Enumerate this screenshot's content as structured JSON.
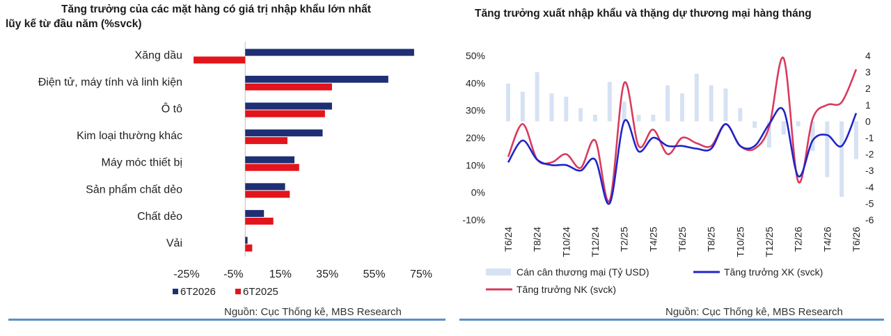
{
  "left": {
    "title_line1": "Tăng trưởng của các mặt hàng có giá trị nhập khẩu lớn nhất",
    "title_line2": "lũy kế từ đầu năm (%svck)",
    "source": "Nguồn: Cục Thống kê, MBS Research"
  },
  "right": {
    "title": "Tăng trưởng xuất nhập khẩu và thặng dự thương mại hàng tháng",
    "source": "Nguồn: Cục Thống kê, MBS Research"
  },
  "chart_data": [
    {
      "type": "bar",
      "orientation": "horizontal",
      "categories": [
        "Xăng dầu",
        "Điện tử, máy tính và linh kiện",
        "Ô tô",
        "Kim loại thường khác",
        "Máy móc thiết bị",
        "Sản phẩm chất dẻo",
        "Chất dẻo",
        "Vải"
      ],
      "series": [
        {
          "name": "6T2026",
          "color": "#1f2f74",
          "values": [
            72,
            61,
            37,
            33,
            21,
            17,
            8,
            1
          ]
        },
        {
          "name": "6T2025",
          "color": "#e3141b",
          "values": [
            -22,
            37,
            34,
            18,
            23,
            19,
            12,
            3
          ]
        }
      ],
      "xlim": [
        -25,
        75
      ],
      "xticks": [
        "-25%",
        "-5%",
        "15%",
        "35%",
        "55%",
        "75%"
      ],
      "legend": "bottom-left"
    },
    {
      "type": "line",
      "x": [
        "T6/24",
        "T7/24",
        "T8/24",
        "T9/24",
        "T10/24",
        "T11/24",
        "T12/24",
        "T1/25",
        "T2/25",
        "T3/25",
        "T4/25",
        "T5/25",
        "T6/25",
        "T7/25",
        "T8/25",
        "T9/25",
        "T10/25",
        "T11/25",
        "T12/25",
        "T1/26",
        "T2/26",
        "T3/26",
        "T4/26",
        "T5/26",
        "T6/26"
      ],
      "xticks": [
        "T6/24",
        "T8/24",
        "T10/24",
        "T12/24",
        "T2/25",
        "T4/25",
        "T6/25",
        "T8/25",
        "T10/25",
        "T12/25",
        "T2/26",
        "T4/26",
        "T6/26"
      ],
      "series": [
        {
          "name": "Cán cân thương mại (Tỷ USD)",
          "kind": "bar",
          "axis": "right",
          "color": "#d6e2f3",
          "values": [
            2.3,
            1.8,
            3.0,
            1.7,
            1.5,
            0.8,
            0.4,
            2.4,
            1.2,
            0.4,
            0.4,
            2.2,
            1.7,
            2.9,
            2.2,
            2.0,
            0.8,
            -0.4,
            -1.6,
            -0.8,
            -0.3,
            -1.8,
            -3.4,
            -4.6,
            -2.3
          ]
        },
        {
          "name": "Tăng trưởng XK (svck)",
          "axis": "left",
          "color": "#1f24c8",
          "values": [
            11,
            19,
            12,
            10,
            10,
            8,
            12,
            -4,
            26,
            15,
            20,
            17,
            17,
            16,
            16,
            25,
            17,
            17,
            25,
            30,
            6,
            19,
            21,
            17,
            29
          ]
        },
        {
          "name": "Tăng trưởng NK (svck)",
          "axis": "left",
          "color": "#d93a5c",
          "values": [
            13,
            25,
            12,
            11,
            14,
            9,
            19,
            -3,
            40,
            17,
            23,
            14,
            20,
            18,
            17,
            25,
            17,
            16,
            24,
            49,
            4,
            27,
            32,
            33,
            45
          ]
        }
      ],
      "ylim": [
        -10,
        50
      ],
      "yticks": [
        "-10%",
        "0%",
        "10%",
        "20%",
        "30%",
        "40%",
        "50%"
      ],
      "y2lim": [
        -6,
        4
      ],
      "y2ticks": [
        "-6",
        "-5",
        "-4",
        "-3",
        "-2",
        "-1",
        "0",
        "1",
        "2",
        "3",
        "4"
      ],
      "legend": "bottom"
    }
  ]
}
